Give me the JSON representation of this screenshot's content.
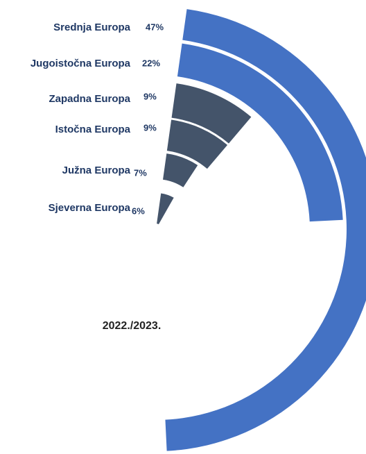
{
  "chart_data": {
    "type": "radial-bar",
    "title": "2022./2023.",
    "categories": [
      "Srednja Europa",
      "Jugoistočna Europa",
      "Zapadna Europa",
      "Istočna Europa",
      "Južna Europa",
      "Sjeverna Europa"
    ],
    "values": [
      47,
      22,
      9,
      9,
      7,
      6
    ],
    "value_labels": [
      "47%",
      "22%",
      "9%",
      "9%",
      "7%",
      "6%"
    ],
    "colors": [
      "#4472c4",
      "#4472c4",
      "#44546a",
      "#44546a",
      "#44546a",
      "#44546a"
    ]
  }
}
